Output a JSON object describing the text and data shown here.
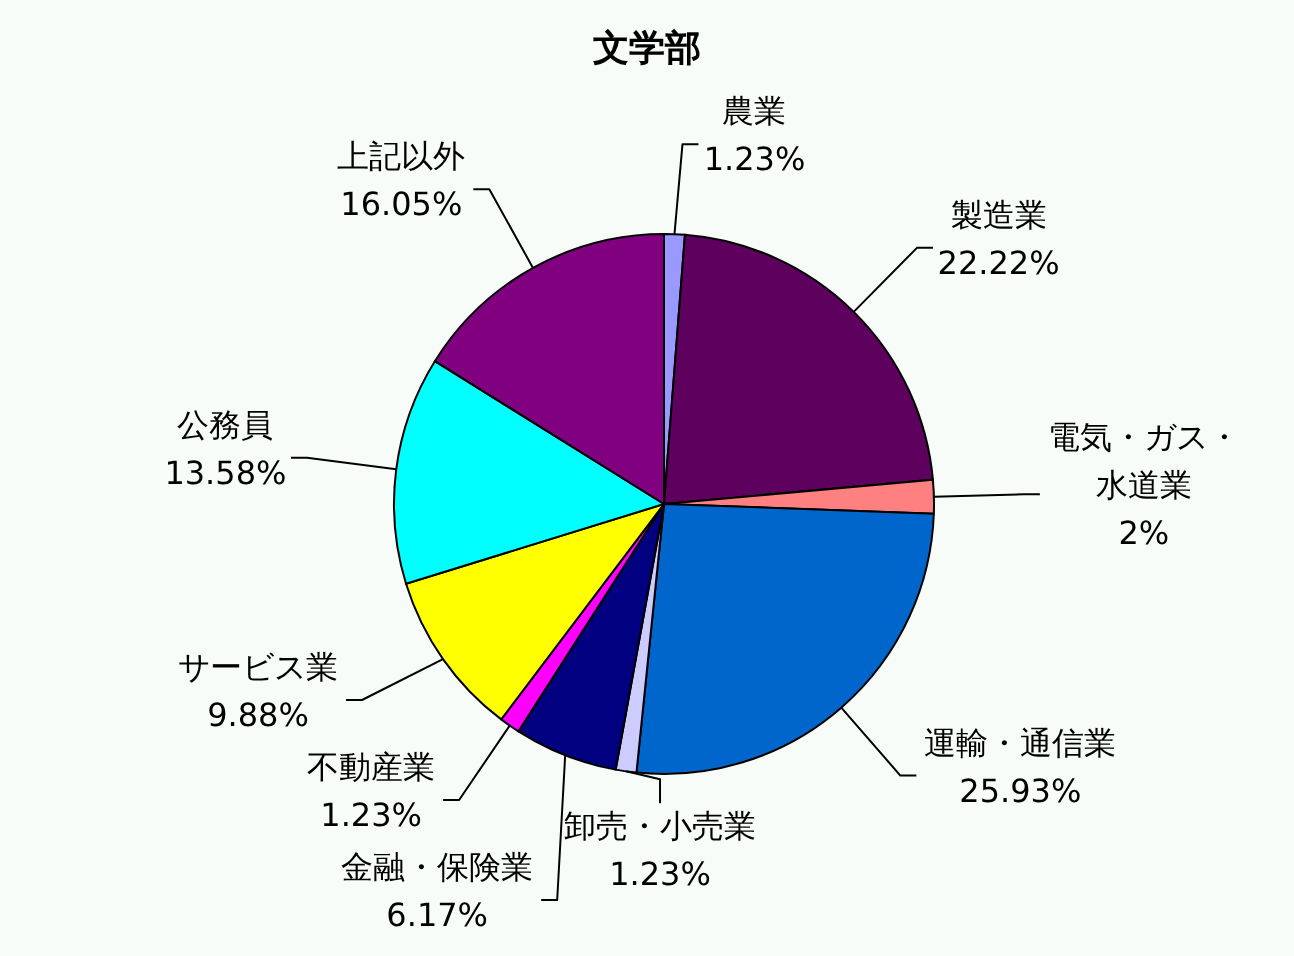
{
  "chart_data": {
    "type": "pie",
    "title": "文学部",
    "categories": [
      "農業",
      "製造業",
      "電気・ガス・水道業",
      "運輸・通信業",
      "卸売・小売業",
      "金融・保険業",
      "不動産業",
      "サービス業",
      "公務員",
      "上記以外"
    ],
    "values": [
      1.23,
      22.22,
      2,
      25.93,
      1.23,
      6.17,
      1.23,
      9.88,
      13.58,
      16.05
    ],
    "value_labels": [
      "1.23%",
      "22.22%",
      "2%",
      "25.93%",
      "1.23%",
      "6.17%",
      "1.23%",
      "9.88%",
      "13.58%",
      "16.05%"
    ],
    "colors": [
      "#9999ff",
      "#5e005e",
      "#ff8080",
      "#0066cc",
      "#ccccff",
      "#000080",
      "#ff00ff",
      "#ffff00",
      "#00ffff",
      "#800080"
    ]
  }
}
